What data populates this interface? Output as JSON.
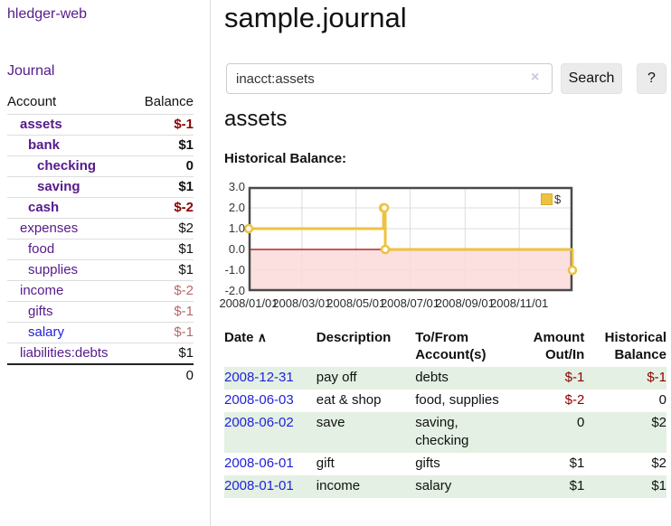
{
  "brand": "hledger-web",
  "sidebar": {
    "journal_link": "Journal",
    "columns": {
      "account": "Account",
      "balance": "Balance"
    },
    "accounts": [
      {
        "name": "assets",
        "level": 1,
        "bold": true,
        "name_class": "purple",
        "balance": "$-1",
        "balance_class": "neg-strong"
      },
      {
        "name": "bank",
        "level": 2,
        "bold": true,
        "name_class": "purple",
        "balance": "$1",
        "balance_class": ""
      },
      {
        "name": "checking",
        "level": 3,
        "bold": true,
        "name_class": "purple",
        "balance": "0",
        "balance_class": ""
      },
      {
        "name": "saving",
        "level": 3,
        "bold": true,
        "name_class": "purple",
        "balance": "$1",
        "balance_class": ""
      },
      {
        "name": "cash",
        "level": 2,
        "bold": true,
        "name_class": "purple",
        "balance": "$-2",
        "balance_class": "neg-strong"
      },
      {
        "name": "expenses",
        "level": 1,
        "bold": false,
        "name_class": "purple",
        "balance": "$2",
        "balance_class": ""
      },
      {
        "name": "food",
        "level": 2,
        "bold": false,
        "name_class": "purple",
        "balance": "$1",
        "balance_class": ""
      },
      {
        "name": "supplies",
        "level": 2,
        "bold": false,
        "name_class": "purple",
        "balance": "$1",
        "balance_class": ""
      },
      {
        "name": "income",
        "level": 1,
        "bold": false,
        "name_class": "purple",
        "balance": "$-2",
        "balance_class": "neg-soft"
      },
      {
        "name": "gifts",
        "level": 2,
        "bold": false,
        "name_class": "purple",
        "balance": "$-1",
        "balance_class": "neg-soft"
      },
      {
        "name": "salary",
        "level": 2,
        "bold": false,
        "name_class": "blue",
        "balance": "$-1",
        "balance_class": "neg-soft"
      },
      {
        "name": "liabilities:debts",
        "level": 1,
        "bold": false,
        "name_class": "purple",
        "balance": "$1",
        "balance_class": ""
      }
    ],
    "total": "0"
  },
  "header": {
    "title": "sample.journal"
  },
  "search": {
    "value": "inacct:assets",
    "clear_icon": "×",
    "search_button": "Search",
    "help_button": "?"
  },
  "account_page": {
    "heading": "assets",
    "chart_label": "Historical Balance:"
  },
  "chart_data": {
    "type": "line",
    "title": "Historical Balance:",
    "step": true,
    "series": [
      {
        "name": "$",
        "color": "#edc240",
        "points": [
          [
            "2008-01-01",
            1
          ],
          [
            "2008-06-01",
            2
          ],
          [
            "2008-06-02",
            2
          ],
          [
            "2008-06-03",
            0
          ],
          [
            "2008-12-31",
            -1
          ]
        ]
      }
    ],
    "x_range": [
      "2008-01-01",
      "2008-12-31"
    ],
    "x_ticks": [
      "2008/01/01",
      "2008/03/01",
      "2008/05/01",
      "2008/07/01",
      "2008/09/01",
      "2008/11/01"
    ],
    "y_ticks": [
      "3.0",
      "2.0",
      "1.0",
      "0.0",
      "-1.0",
      "-2.0"
    ],
    "ylim": [
      -2,
      3
    ],
    "grid": true,
    "legend": "$",
    "legend_position": "top-right",
    "colors": {
      "line": "#edc240",
      "negative_region": "#fbd9d9",
      "zero_line": "#a40000",
      "grid": "#dddddd",
      "border": "#4a4a4a"
    }
  },
  "register": {
    "columns": [
      {
        "line1": "Date",
        "line2": "",
        "align": "left",
        "sort_icon": "∧"
      },
      {
        "line1": "Description",
        "line2": "",
        "align": "left"
      },
      {
        "line1": "To/From",
        "line2": "Account(s)",
        "align": "left"
      },
      {
        "line1": "Amount",
        "line2": "Out/In",
        "align": "right"
      },
      {
        "line1": "Historical",
        "line2": "Balance",
        "align": "right"
      }
    ],
    "rows": [
      {
        "date": "2008-12-31",
        "description": "pay off",
        "accounts": "debts",
        "amount": "$-1",
        "amount_neg": true,
        "balance": "$-1",
        "balance_neg": true,
        "green": true
      },
      {
        "date": "2008-06-03",
        "description": "eat & shop",
        "accounts": "food, supplies",
        "amount": "$-2",
        "amount_neg": true,
        "balance": "0",
        "balance_neg": false,
        "green": false
      },
      {
        "date": "2008-06-02",
        "description": "save",
        "accounts": "saving, checking",
        "amount": "0",
        "amount_neg": false,
        "balance": "$2",
        "balance_neg": false,
        "green": true
      },
      {
        "date": "2008-06-01",
        "description": "gift",
        "accounts": "gifts",
        "amount": "$1",
        "amount_neg": false,
        "balance": "$2",
        "balance_neg": false,
        "green": false
      },
      {
        "date": "2008-01-01",
        "description": "income",
        "accounts": "salary",
        "amount": "$1",
        "amount_neg": false,
        "balance": "$1",
        "balance_neg": false,
        "green": true
      }
    ]
  },
  "colors": {
    "link_purple": "#551a8b",
    "link_blue": "#2222dd",
    "negative": "#8b0000",
    "negative_soft": "#b36a6a",
    "row_green": "#e3f0e3"
  }
}
